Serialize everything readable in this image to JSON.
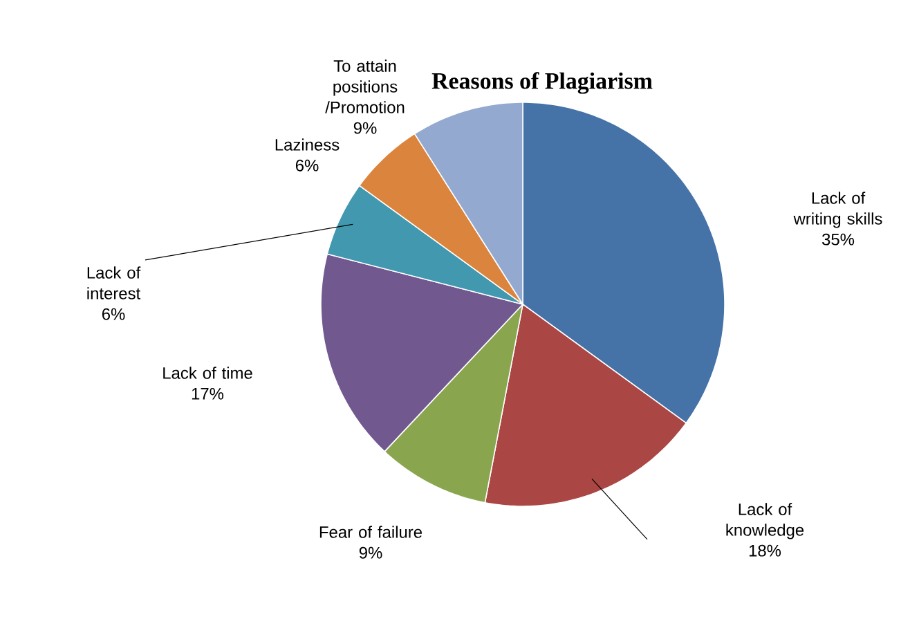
{
  "chart_data": {
    "type": "pie",
    "title": "Reasons of Plagiarism",
    "categories": [
      "Lack of writing skills",
      "Lack of knowledge",
      "Fear of failure",
      "Lack of time",
      "Lack of interest",
      "Laziness",
      "To attain positions /Promotion"
    ],
    "values": [
      35,
      18,
      9,
      17,
      6,
      6,
      9
    ],
    "value_labels": [
      "35%",
      "18%",
      "9%",
      "17%",
      "6%",
      "6%",
      "9%"
    ],
    "colors": [
      "#4572a7",
      "#aa4643",
      "#89a54e",
      "#71588f",
      "#4198af",
      "#db843d",
      "#93a9cf"
    ]
  }
}
